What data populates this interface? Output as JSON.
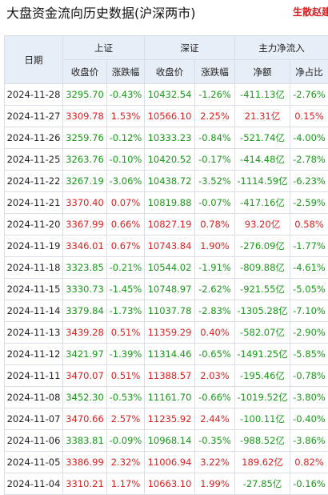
{
  "header": {
    "title": "大盘资金流向历史数据(沪深两市)",
    "brand": "生散赵建"
  },
  "table": {
    "date_header": "日期",
    "groups": [
      "上证",
      "深证",
      "主力净流入"
    ],
    "columns": [
      "收盘价",
      "涨跌幅",
      "收盘价",
      "涨跌幅",
      "净额",
      "净占比"
    ],
    "rows": [
      [
        "2024-11-28",
        "3295.70",
        "-0.43%",
        "10432.54",
        "-1.26%",
        "-411.13亿",
        "-2.76%"
      ],
      [
        "2024-11-27",
        "3309.78",
        "1.53%",
        "10566.10",
        "2.25%",
        "21.31亿",
        "0.15%"
      ],
      [
        "2024-11-26",
        "3259.76",
        "-0.12%",
        "10333.23",
        "-0.84%",
        "-521.74亿",
        "-4.00%"
      ],
      [
        "2024-11-25",
        "3263.76",
        "-0.10%",
        "10420.52",
        "-0.17%",
        "-414.48亿",
        "-2.78%"
      ],
      [
        "2024-11-22",
        "3267.19",
        "-3.06%",
        "10438.72",
        "-3.52%",
        "-1114.59亿",
        "-6.23%"
      ],
      [
        "2024-11-21",
        "3370.40",
        "0.07%",
        "10819.88",
        "-0.07%",
        "-417.16亿",
        "-2.59%"
      ],
      [
        "2024-11-20",
        "3367.99",
        "0.66%",
        "10827.19",
        "0.78%",
        "93.20亿",
        "0.58%"
      ],
      [
        "2024-11-19",
        "3346.01",
        "0.67%",
        "10743.84",
        "1.90%",
        "-276.09亿",
        "-1.77%"
      ],
      [
        "2024-11-18",
        "3323.85",
        "-0.21%",
        "10544.02",
        "-1.91%",
        "-809.88亿",
        "-4.61%"
      ],
      [
        "2024-11-15",
        "3330.73",
        "-1.45%",
        "10748.97",
        "-2.62%",
        "-921.55亿",
        "-5.05%"
      ],
      [
        "2024-11-14",
        "3379.84",
        "-1.73%",
        "11037.78",
        "-2.83%",
        "-1305.28亿",
        "-7.10%"
      ],
      [
        "2024-11-13",
        "3439.28",
        "0.51%",
        "11359.29",
        "0.40%",
        "-582.07亿",
        "-2.90%"
      ],
      [
        "2024-11-12",
        "3421.97",
        "-1.39%",
        "11314.46",
        "-0.65%",
        "-1491.25亿",
        "-5.85%"
      ],
      [
        "2024-11-11",
        "3470.07",
        "0.51%",
        "11388.57",
        "2.03%",
        "-195.46亿",
        "-0.78%"
      ],
      [
        "2024-11-08",
        "3452.30",
        "-0.53%",
        "11161.70",
        "-0.66%",
        "-1019.52亿",
        "-3.80%"
      ],
      [
        "2024-11-07",
        "3470.66",
        "2.57%",
        "11235.92",
        "2.44%",
        "-100.11亿",
        "-0.40%"
      ],
      [
        "2024-11-06",
        "3383.81",
        "-0.09%",
        "10968.14",
        "-0.35%",
        "-988.52亿",
        "-3.86%"
      ],
      [
        "2024-11-05",
        "3386.99",
        "2.32%",
        "11006.94",
        "3.22%",
        "189.62亿",
        "0.82%"
      ],
      [
        "2024-11-04",
        "3310.21",
        "1.17%",
        "10663.10",
        "1.99%",
        "-27.85亿",
        "-0.16%"
      ]
    ]
  }
}
